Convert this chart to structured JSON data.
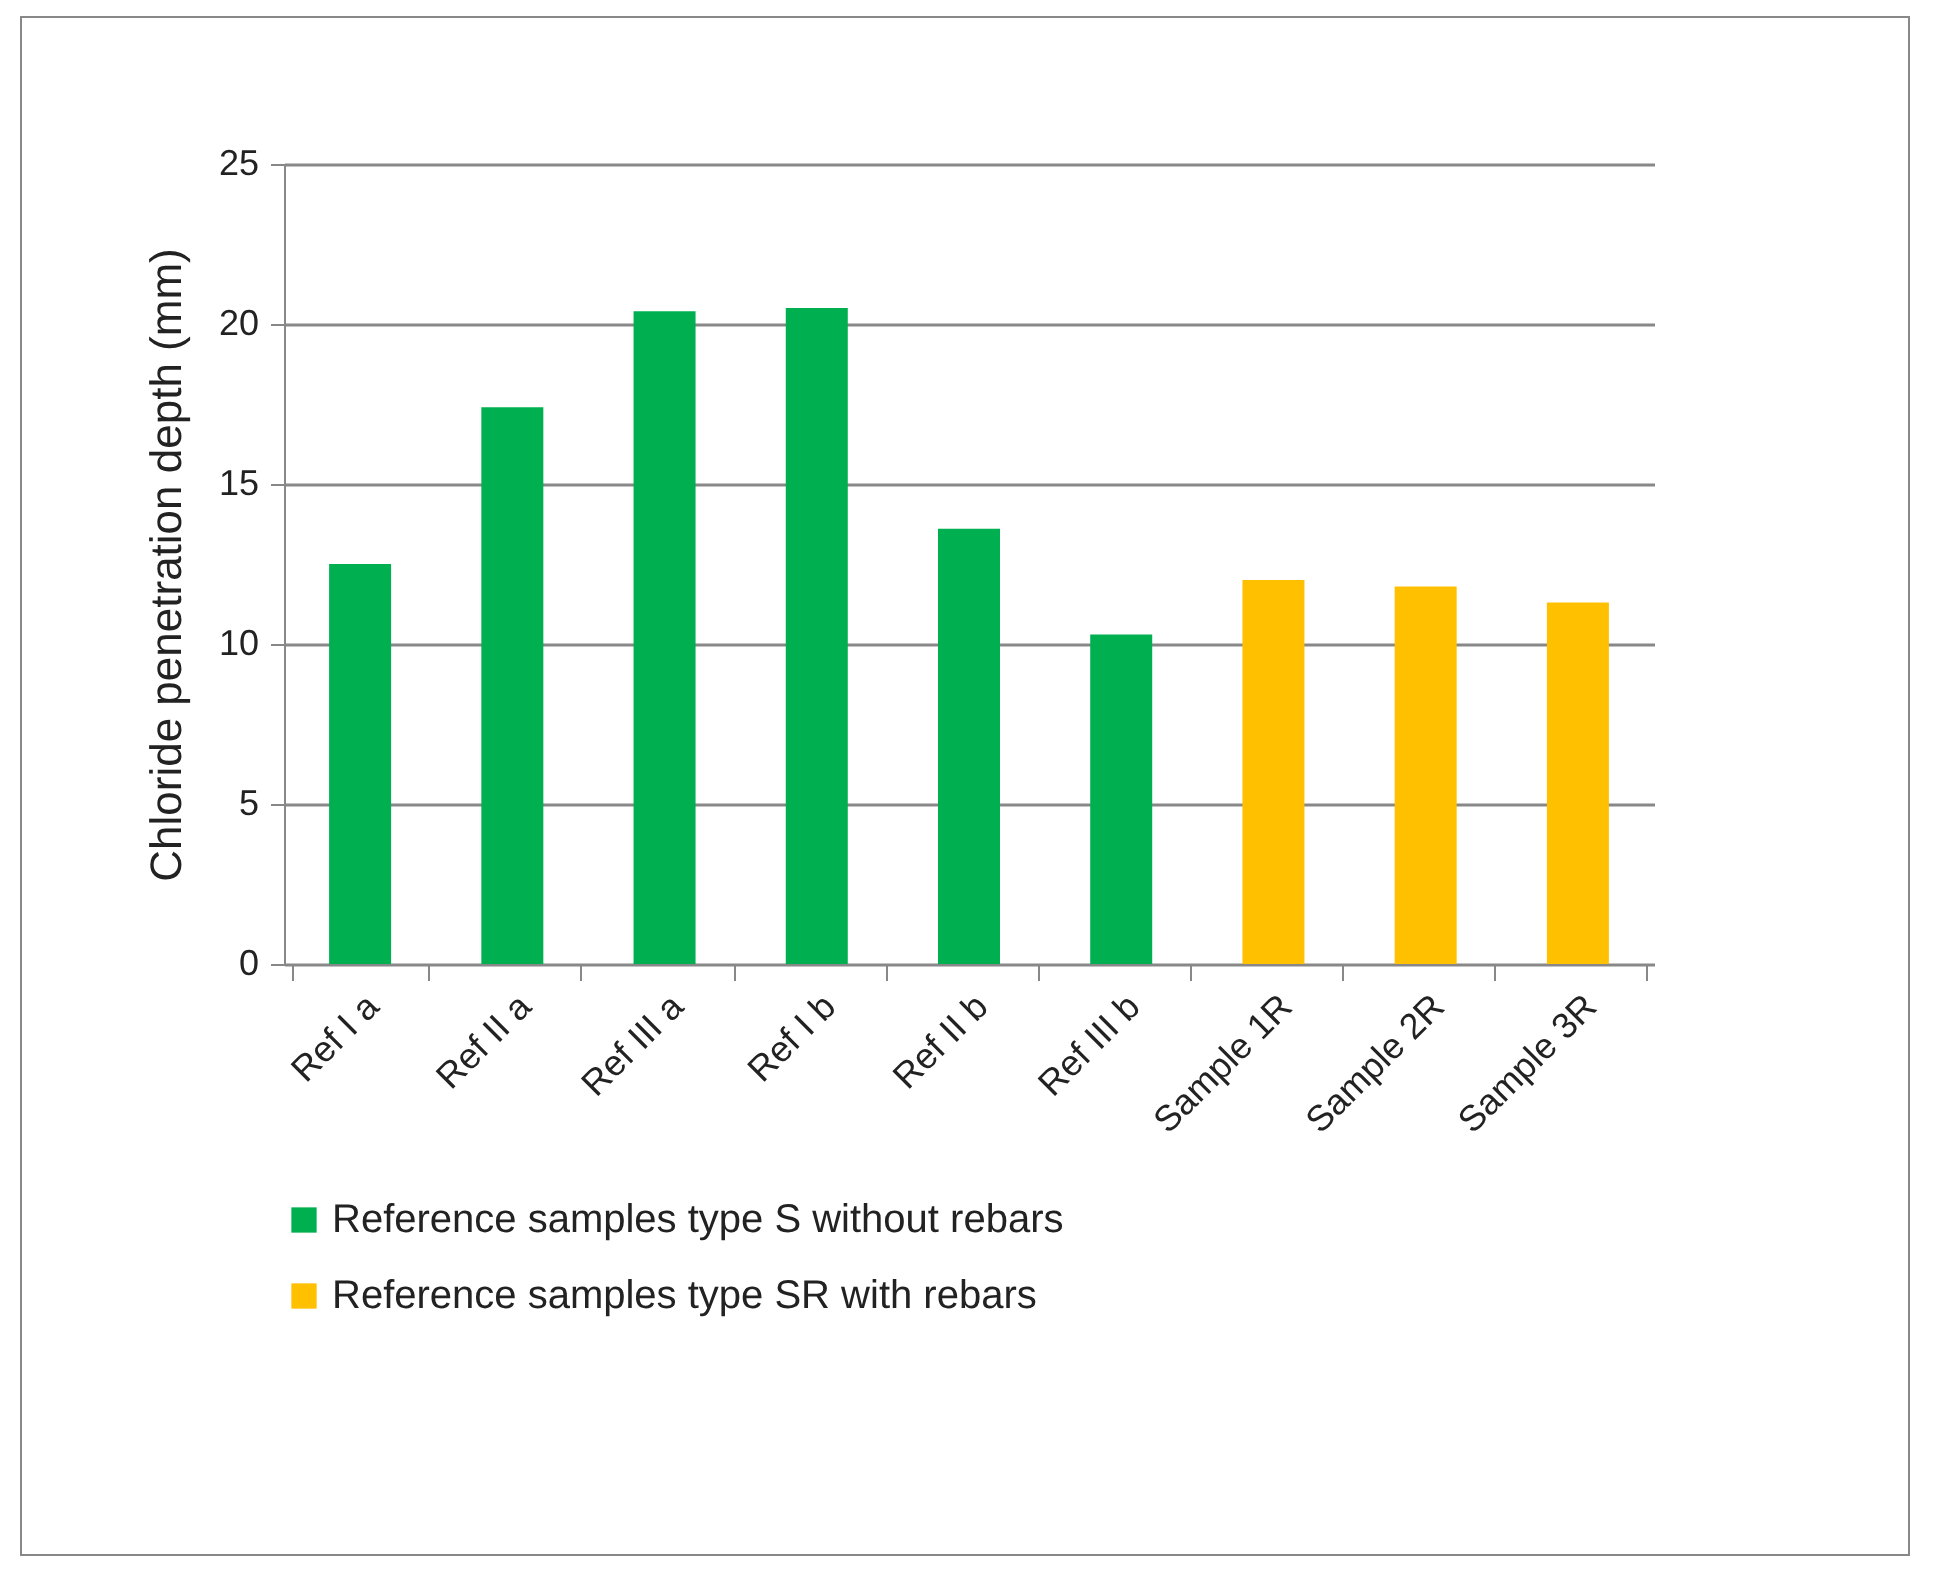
{
  "chart_data": {
    "type": "bar",
    "ylabel": "Chloride penetration depth (mm)",
    "categories": [
      "Ref I a",
      "Ref II a",
      "Ref III a",
      "Ref I b",
      "Ref II b",
      "Ref III b",
      "Sample 1R",
      "Sample 2R",
      "Sample 3R"
    ],
    "series": [
      {
        "name": "Reference samples type S without rebars",
        "color": "#00b050",
        "values": [
          12.5,
          17.4,
          20.4,
          20.5,
          13.6,
          10.3,
          null,
          null,
          null
        ]
      },
      {
        "name": "Reference samples type SR with rebars",
        "color": "#ffc000",
        "values": [
          null,
          null,
          null,
          null,
          null,
          null,
          12.0,
          11.8,
          11.3
        ]
      }
    ],
    "ylim": [
      0,
      25
    ],
    "yticks": [
      0,
      5,
      10,
      15,
      20,
      25
    ],
    "grid": "y",
    "legend": "bottom"
  }
}
